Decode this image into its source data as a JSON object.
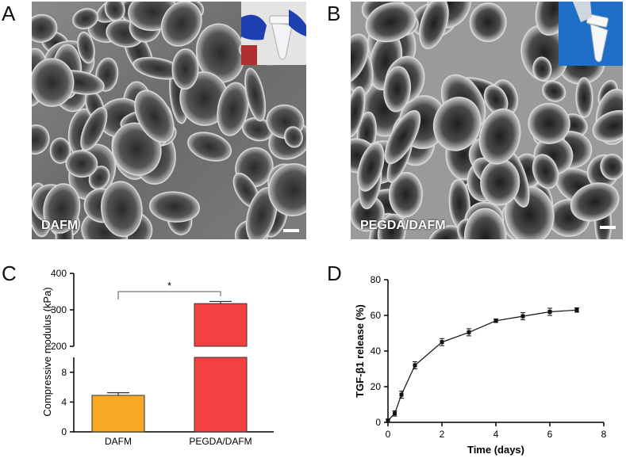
{
  "panels": {
    "a": {
      "letter": "A",
      "label": "DAFM"
    },
    "b": {
      "letter": "B",
      "label": "PEGDA/DAFM"
    },
    "c": {
      "letter": "C"
    },
    "d": {
      "letter": "D"
    }
  },
  "chart_data": [
    {
      "type": "bar",
      "title": "",
      "categories": [
        "DAFM",
        "PEGDA/DAFM"
      ],
      "values": [
        4.9,
        317
      ],
      "errors": [
        0.35,
        6
      ],
      "colors": [
        "#f9a825",
        "#f44040"
      ],
      "ylabel": "Compressive modulus (kPa)",
      "ylim": [
        0,
        400
      ],
      "axis_break": [
        10,
        200
      ],
      "yticks_lower": [
        "0",
        "4",
        "8"
      ],
      "yticks_upper": [
        "200",
        "300",
        "400"
      ],
      "significance": "*"
    },
    {
      "type": "line",
      "title": "",
      "xlabel": "Time (days)",
      "ylabel": "TGF-β1 release (%)",
      "xlim": [
        0,
        8
      ],
      "ylim": [
        0,
        80
      ],
      "xticks": [
        "0",
        "2",
        "4",
        "6",
        "8"
      ],
      "yticks": [
        "0",
        "20",
        "40",
        "60",
        "80"
      ],
      "x": [
        0,
        0.25,
        0.5,
        1,
        2,
        3,
        4,
        5,
        6,
        7
      ],
      "y": [
        1,
        5,
        15.5,
        32,
        45,
        50.5,
        57,
        59.5,
        62,
        63
      ],
      "err": [
        0.8,
        1.5,
        2,
        2,
        2,
        2,
        1,
        2,
        2,
        1.2
      ]
    }
  ]
}
